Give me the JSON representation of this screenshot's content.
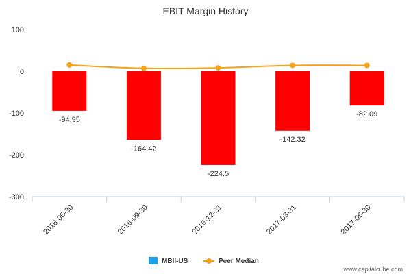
{
  "chart_data": {
    "type": "bar",
    "title": "EBIT Margin History",
    "categories": [
      "2016-06-30",
      "2016-09-30",
      "2016-12-31",
      "2017-03-31",
      "2017-06-30"
    ],
    "series": [
      {
        "name": "MBII-US",
        "type": "bar",
        "values": [
          -94.95,
          -164.42,
          -224.5,
          -142.32,
          -82.09
        ],
        "data_labels": [
          "-94.95",
          "-164.42",
          "-224.5",
          "-142.32",
          "-82.09"
        ]
      },
      {
        "name": "Peer Median",
        "type": "line",
        "values": [
          15,
          7,
          8,
          14,
          14
        ]
      }
    ],
    "ylim": [
      -300,
      100
    ],
    "yticks": [
      100,
      0,
      -100,
      -200,
      -300
    ],
    "grid": false,
    "legend_position": "bottom-center"
  },
  "colors": {
    "bar": "#ff0000",
    "line": "#f5a21b",
    "legend_bar_swatch": "#1ea1e8",
    "axis": "#c0d0e0",
    "text": "#333333"
  },
  "credit": "www.capitalcube.com"
}
